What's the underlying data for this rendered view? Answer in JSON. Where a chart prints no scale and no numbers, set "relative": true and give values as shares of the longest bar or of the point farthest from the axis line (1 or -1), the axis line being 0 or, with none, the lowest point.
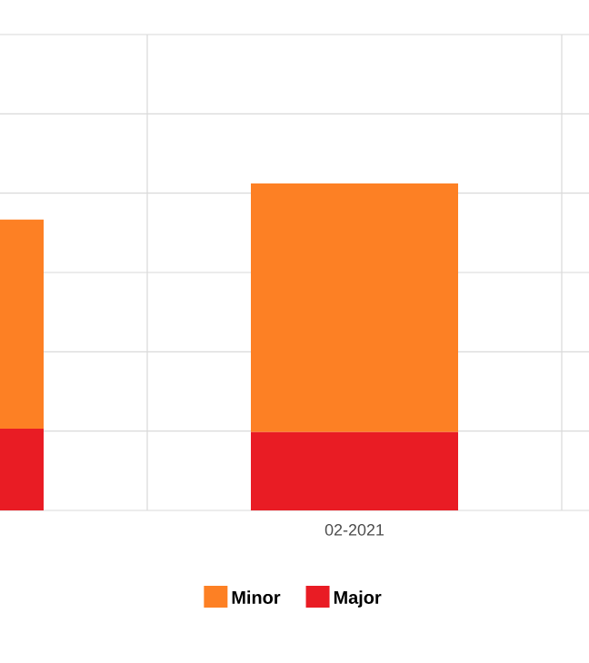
{
  "chart_data": {
    "type": "bar",
    "stacked": true,
    "relative": true,
    "grid": true,
    "legend": "bottom",
    "categories": [
      null,
      "02-2021"
    ],
    "series": [
      {
        "name": "Major",
        "color": "#e91c24",
        "values": [
          0.25,
          0.24
        ]
      },
      {
        "name": "Minor",
        "color": "#fd8024",
        "values": [
          0.64,
          0.76
        ]
      }
    ]
  }
}
